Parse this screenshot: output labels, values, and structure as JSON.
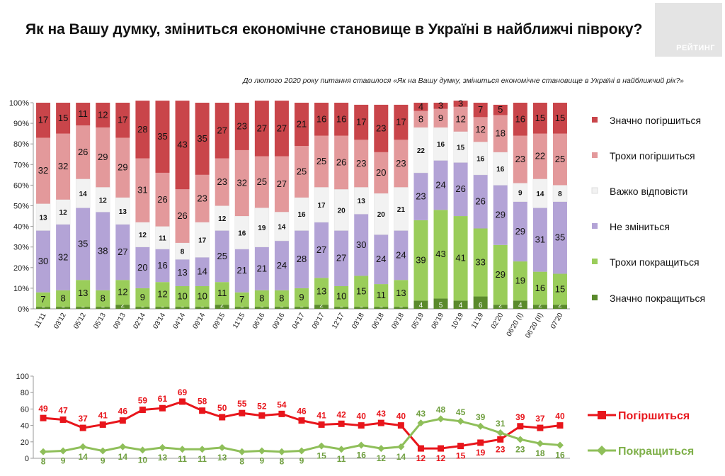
{
  "header": {
    "title": "Як на Вашу думку, зміниться економічне становище в Україні в найближчі півроку?",
    "logo_text": "РЕЙТИНГ",
    "note": "До лютого 2020 року питання ставилося «Як на Вашу думку, зміниться економічне становище в Україні в найближчий рік?»"
  },
  "chart_data": [
    {
      "type": "bar",
      "stacked": true,
      "categories": [
        "11'11",
        "03'12",
        "05'12",
        "05'13",
        "09'13",
        "02'14",
        "03'14",
        "04'14",
        "09'14",
        "09'15",
        "11'15",
        "06'16",
        "09'16",
        "04'17",
        "09'17",
        "12'17",
        "03'18",
        "06'18",
        "09'18",
        "05'19",
        "06'19",
        "10'19",
        "11'19",
        "02'20",
        "06'20 (I)",
        "06'20 (II)",
        "07'20"
      ],
      "yticks": [
        "0%",
        "10%",
        "20%",
        "30%",
        "40%",
        "50%",
        "60%",
        "70%",
        "80%",
        "90%",
        "100%"
      ],
      "ylim": [
        0,
        100
      ],
      "series": [
        {
          "name": "Значно покращиться",
          "color": "#5a8a2c",
          "values": [
            1,
            1,
            1,
            1,
            2,
            1,
            1,
            1,
            1,
            2,
            1,
            1,
            1,
            1,
            2,
            1,
            1,
            1,
            1,
            4,
            5,
            4,
            6,
            2,
            4,
            2,
            2
          ]
        },
        {
          "name": "Трохи покращиться",
          "color": "#9acd5a",
          "values": [
            7,
            8,
            13,
            8,
            12,
            9,
            12,
            10,
            10,
            11,
            7,
            8,
            8,
            9,
            13,
            10,
            15,
            11,
            13,
            39,
            43,
            41,
            33,
            29,
            19,
            16,
            15
          ]
        },
        {
          "name": "Не зміниться",
          "color": "#b3a3d6",
          "values": [
            30,
            32,
            35,
            38,
            27,
            20,
            16,
            13,
            14,
            25,
            21,
            21,
            24,
            28,
            27,
            27,
            30,
            24,
            24,
            23,
            24,
            26,
            26,
            29,
            29,
            31,
            35
          ]
        },
        {
          "name": "Важко відповісти",
          "color": "#f2f2f2",
          "values": [
            13,
            12,
            14,
            12,
            13,
            12,
            11,
            8,
            17,
            12,
            16,
            19,
            14,
            16,
            17,
            20,
            13,
            20,
            21,
            22,
            16,
            15,
            16,
            16,
            9,
            14,
            8
          ]
        },
        {
          "name": "Трохи погіршиться",
          "color": "#e3999b",
          "values": [
            32,
            32,
            26,
            29,
            29,
            31,
            26,
            26,
            23,
            23,
            32,
            25,
            27,
            25,
            25,
            26,
            23,
            20,
            23,
            8,
            9,
            12,
            12,
            18,
            23,
            22,
            25
          ]
        },
        {
          "name": "Значно погіршиться",
          "color": "#c9454a",
          "values": [
            17,
            15,
            11,
            12,
            17,
            28,
            35,
            43,
            35,
            27,
            23,
            27,
            27,
            21,
            16,
            16,
            17,
            23,
            17,
            4,
            3,
            3,
            7,
            5,
            16,
            15,
            15
          ]
        }
      ]
    },
    {
      "type": "line",
      "ylim": [
        0,
        100
      ],
      "yticks": [
        "0",
        "20",
        "40",
        "60",
        "80",
        "100"
      ],
      "series": [
        {
          "name": "Погіршиться",
          "color": "#e8151b",
          "values": [
            49,
            47,
            37,
            41,
            46,
            59,
            61,
            69,
            58,
            50,
            55,
            52,
            54,
            46,
            41,
            42,
            40,
            43,
            40,
            12,
            12,
            15,
            19,
            23,
            39,
            37,
            40
          ]
        },
        {
          "name": "Покращиться",
          "color": "#8fbf5a",
          "values": [
            8,
            9,
            14,
            9,
            14,
            10,
            13,
            11,
            11,
            13,
            8,
            9,
            8,
            9,
            15,
            11,
            16,
            12,
            14,
            43,
            48,
            45,
            39,
            31,
            23,
            18,
            16
          ]
        }
      ]
    }
  ]
}
